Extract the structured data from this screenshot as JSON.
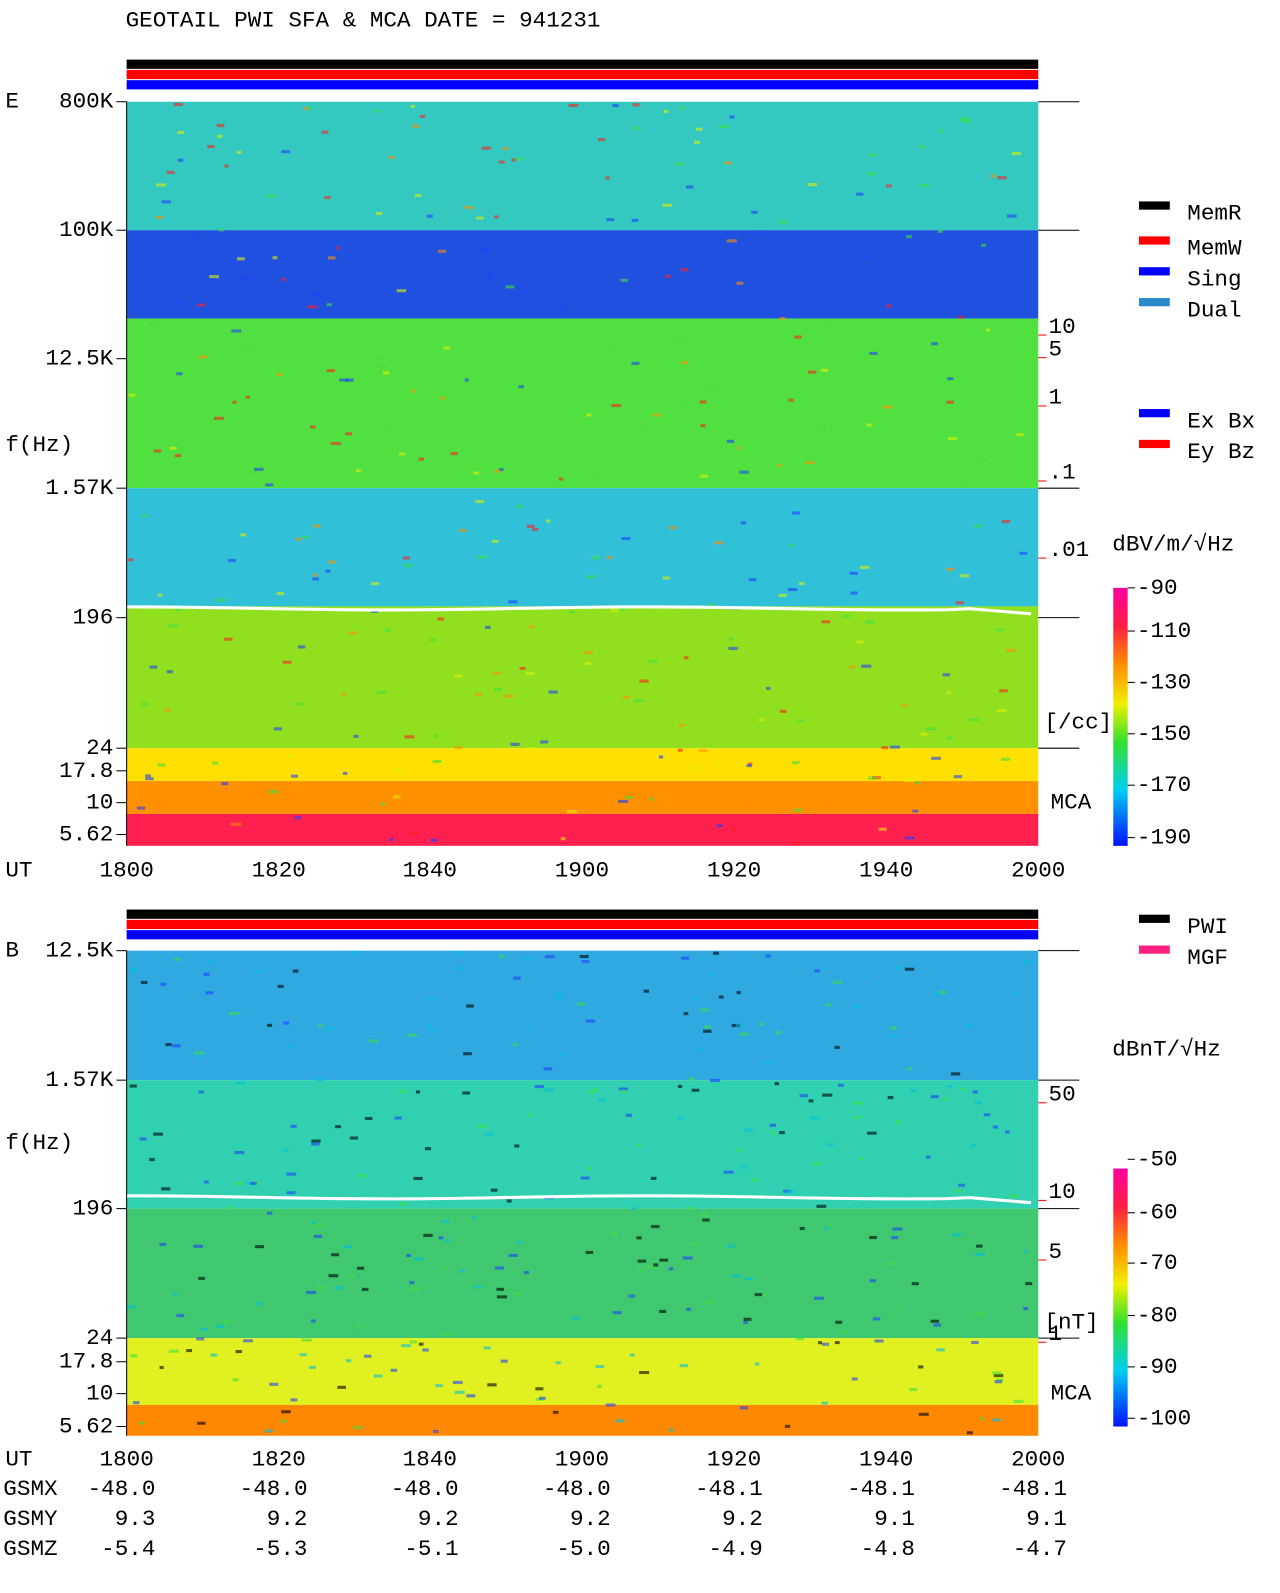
{
  "title": "GEOTAIL  PWI SFA & MCA   DATE = 941231",
  "panels": [
    {
      "label": "E",
      "y_axis_label": "f(Hz)",
      "x_axis_label": "UT",
      "freq_ticks": [
        "800K",
        "100K",
        "12.5K",
        "1.57K",
        "196",
        "24",
        "17.8",
        "10",
        "5.62"
      ],
      "time_ticks": [
        "1800",
        "1820",
        "1840",
        "1900",
        "1920",
        "1940",
        "2000"
      ],
      "density_ticks": [
        "10",
        "5",
        "1",
        ".1",
        ".01"
      ],
      "density_unit": "[/cc]",
      "mca_label": "MCA",
      "colorbar_label": "dBV/m/√Hz",
      "colorbar_ticks": [
        "-90",
        "-110",
        "-130",
        "-150",
        "-170",
        "-190"
      ],
      "legend": [
        {
          "name": "MemR",
          "color": "#000000"
        },
        {
          "name": "MemW",
          "color": "#ff0000"
        },
        {
          "name": "Sing",
          "color": "#0000ff"
        },
        {
          "name": "Dual",
          "color": "#2a8acb"
        },
        {
          "name": "Ex Bx",
          "color": "#0000ff"
        },
        {
          "name": "Ey Bz",
          "color": "#ff0000"
        }
      ]
    },
    {
      "label": "B",
      "y_axis_label": "f(Hz)",
      "x_axis_label": "UT",
      "freq_ticks": [
        "12.5K",
        "1.57K",
        "196",
        "24",
        "17.8",
        "10",
        "5.62"
      ],
      "time_ticks": [
        "1800",
        "1820",
        "1840",
        "1900",
        "1920",
        "1940",
        "2000"
      ],
      "density_ticks": [
        "50",
        "10",
        "5",
        "1"
      ],
      "density_unit": "[nT]",
      "mca_label": "MCA",
      "colorbar_label": "dBnT/√Hz",
      "colorbar_ticks": [
        "-50",
        "-60",
        "-70",
        "-80",
        "-90",
        "-100"
      ],
      "legend": [
        {
          "name": "PWI",
          "color": "#000000"
        },
        {
          "name": "MGF",
          "color": "#ff1f7f"
        }
      ]
    }
  ],
  "orbit": {
    "rows": [
      {
        "label": "GSMX",
        "values": [
          "-48.0",
          "-48.0",
          "-48.0",
          "-48.0",
          "-48.1",
          "-48.1",
          "-48.1"
        ]
      },
      {
        "label": "GSMY",
        "values": [
          "9.3",
          "9.2",
          "9.2",
          "9.2",
          "9.2",
          "9.1",
          "9.1"
        ]
      },
      {
        "label": "GSMZ",
        "values": [
          "-5.4",
          "-5.3",
          "-5.1",
          "-5.0",
          "-4.9",
          "-4.8",
          "-4.7"
        ]
      }
    ]
  }
}
